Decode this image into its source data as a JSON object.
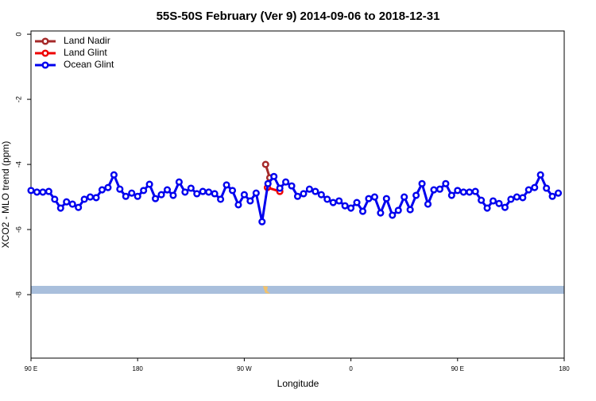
{
  "chart_data": {
    "type": "line",
    "title": "55S-50S February (Ver 9)   2014-09-06 to 2018-12-31",
    "x_label": "Longitude",
    "y_label": "XCO2 - MLO trend (ppm)",
    "xlim": [
      90,
      540
    ],
    "ylim": [
      -9.95,
      0.1
    ],
    "xticks": [
      {
        "value": 90,
        "label": "90 E"
      },
      180,
      {
        "value": 270,
        "label": "90 W"
      },
      {
        "value": 360,
        "label": "0"
      },
      {
        "value": 450,
        "label": "90 E"
      },
      {
        "value": 540,
        "label": "180"
      }
    ],
    "yticks": [
      0,
      -2,
      -4,
      -6,
      -8
    ],
    "legend": "topleft",
    "series": [
      {
        "name": "Land Nadir",
        "color": "#a52a2a",
        "x": [
          288,
          291.5
        ],
        "values": [
          -4.0,
          -4.41
        ]
      },
      {
        "name": "Land Glint",
        "color": "#ee0000",
        "x": [
          289.5,
          300
        ],
        "values": [
          -4.71,
          -4.83
        ]
      },
      {
        "name": "Ocean Glint",
        "color": "#0000ee",
        "x": [
          90,
          95,
          100,
          105,
          110,
          115,
          120,
          125,
          130,
          135,
          140,
          145,
          150,
          155,
          160,
          165,
          170,
          175,
          180,
          185,
          190,
          195,
          200,
          205,
          210,
          215,
          220,
          225,
          230,
          235,
          240,
          245,
          250,
          255,
          260,
          265,
          270,
          275,
          280,
          285,
          290,
          295,
          300,
          305,
          310,
          315,
          320,
          325,
          330,
          335,
          340,
          345,
          350,
          355,
          360,
          365,
          370,
          375,
          380,
          385,
          390,
          395,
          400,
          405,
          410,
          415,
          420,
          425,
          430,
          435,
          440,
          445,
          450,
          455,
          460,
          465,
          470,
          475,
          480,
          485,
          490,
          495,
          500,
          505,
          510,
          515,
          520,
          525,
          530,
          535
        ],
        "values": [
          -4.8,
          -4.85,
          -4.85,
          -4.83,
          -5.07,
          -5.34,
          -5.15,
          -5.22,
          -5.32,
          -5.07,
          -5.0,
          -5.02,
          -4.78,
          -4.71,
          -4.32,
          -4.76,
          -4.98,
          -4.88,
          -4.98,
          -4.8,
          -4.61,
          -5.05,
          -4.93,
          -4.78,
          -4.95,
          -4.54,
          -4.85,
          -4.73,
          -4.9,
          -4.83,
          -4.85,
          -4.9,
          -5.07,
          -4.63,
          -4.8,
          -5.24,
          -4.93,
          -5.12,
          -4.88,
          -5.76,
          -4.59,
          -4.37,
          -4.73,
          -4.54,
          -4.66,
          -4.98,
          -4.9,
          -4.76,
          -4.83,
          -4.93,
          -5.07,
          -5.17,
          -5.12,
          -5.27,
          -5.34,
          -5.17,
          -5.44,
          -5.05,
          -5.0,
          -5.49,
          -5.05,
          -5.56,
          -5.41,
          -5.0,
          -5.39,
          -4.95,
          -4.59,
          -5.22,
          -4.78,
          -4.76,
          -4.59,
          -4.95,
          -4.8,
          -4.85,
          -4.85,
          -4.83,
          -5.1,
          -5.34,
          -5.12,
          -5.2,
          -5.32,
          -5.07,
          -5.0,
          -5.02,
          -4.78,
          -4.71,
          -4.32,
          -4.73,
          -4.98,
          -4.88
        ]
      }
    ]
  }
}
